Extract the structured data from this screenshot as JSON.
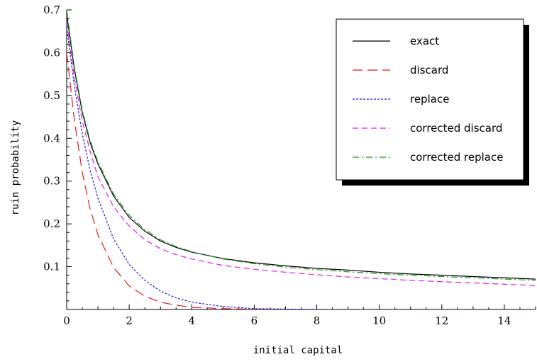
{
  "chart_data": {
    "type": "line",
    "title": "",
    "xlabel": "initial capital",
    "ylabel": "ruin probability",
    "xlim": [
      0,
      15
    ],
    "ylim": [
      0,
      0.7
    ],
    "xticks": [
      0,
      2,
      4,
      6,
      8,
      10,
      12,
      14
    ],
    "yticks": [
      0.1,
      0.2,
      0.3,
      0.4,
      0.5,
      0.6,
      0.7
    ],
    "grid": false,
    "legend_position": "top-right",
    "series": [
      {
        "name": "exact",
        "color": "#000000",
        "dash": "solid",
        "x": [
          0,
          0.25,
          0.5,
          0.75,
          1,
          1.5,
          2,
          2.5,
          3,
          3.5,
          4,
          5,
          6,
          7,
          8,
          9,
          10,
          11,
          12,
          13,
          14,
          15
        ],
        "y": [
          0.69,
          0.56,
          0.46,
          0.39,
          0.34,
          0.265,
          0.215,
          0.183,
          0.16,
          0.145,
          0.134,
          0.119,
          0.109,
          0.102,
          0.096,
          0.092,
          0.087,
          0.083,
          0.08,
          0.077,
          0.074,
          0.071
        ]
      },
      {
        "name": "discard",
        "color": "#e31a1c",
        "dash": "long-dash",
        "x": [
          0,
          0.25,
          0.5,
          0.75,
          1,
          1.5,
          2,
          2.5,
          3,
          3.5,
          4,
          5,
          6,
          7,
          8,
          9,
          10,
          11,
          12,
          13,
          14,
          15
        ],
        "y": [
          0.6,
          0.44,
          0.32,
          0.235,
          0.175,
          0.098,
          0.055,
          0.031,
          0.017,
          0.01,
          0.005,
          0.002,
          0.0005,
          0,
          0,
          0,
          0,
          0,
          0,
          0,
          0,
          0
        ]
      },
      {
        "name": "replace",
        "color": "#1f1fd6",
        "dash": "dotted",
        "x": [
          0,
          0.25,
          0.5,
          0.75,
          1,
          1.5,
          2,
          2.5,
          3,
          3.5,
          4,
          5,
          6,
          7,
          8,
          9,
          10,
          11,
          12,
          13,
          14,
          15
        ],
        "y": [
          0.66,
          0.52,
          0.41,
          0.325,
          0.26,
          0.165,
          0.105,
          0.068,
          0.043,
          0.027,
          0.017,
          0.007,
          0.002,
          0.001,
          0,
          0,
          0,
          0,
          0,
          0,
          0,
          0
        ]
      },
      {
        "name": "corrected discard",
        "color": "#e01ee0",
        "dash": "dashed",
        "x": [
          0,
          0.25,
          0.5,
          0.75,
          1,
          1.5,
          2,
          2.5,
          3,
          3.5,
          4,
          5,
          6,
          7,
          8,
          9,
          10,
          11,
          12,
          13,
          14,
          15
        ],
        "y": [
          0.67,
          0.54,
          0.44,
          0.37,
          0.31,
          0.24,
          0.195,
          0.163,
          0.142,
          0.128,
          0.118,
          0.103,
          0.094,
          0.087,
          0.081,
          0.076,
          0.072,
          0.068,
          0.065,
          0.062,
          0.059,
          0.056
        ]
      },
      {
        "name": "corrected replace",
        "color": "#1a9a1a",
        "dash": "dash-dot",
        "x": [
          0,
          0.25,
          0.5,
          0.75,
          1,
          1.5,
          2,
          2.5,
          3,
          3.5,
          4,
          5,
          6,
          7,
          8,
          9,
          10,
          11,
          12,
          13,
          14,
          15
        ],
        "y": [
          0.7,
          0.565,
          0.465,
          0.395,
          0.345,
          0.27,
          0.22,
          0.187,
          0.163,
          0.147,
          0.135,
          0.118,
          0.107,
          0.099,
          0.093,
          0.088,
          0.084,
          0.08,
          0.077,
          0.074,
          0.071,
          0.068
        ]
      }
    ]
  }
}
